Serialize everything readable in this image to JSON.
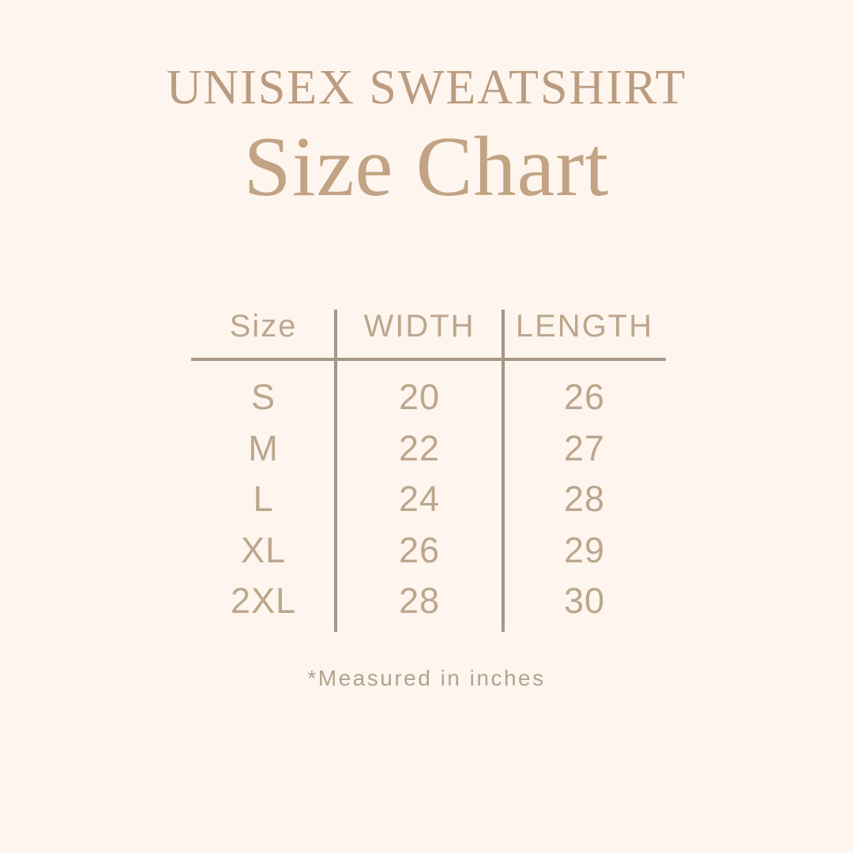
{
  "poster": {
    "subtitle": "UNISEX SWEATSHIRT",
    "title": "Size Chart",
    "footnote": "*Measured in inches"
  },
  "chart_data": {
    "type": "table",
    "title": "UNISEX SWEATSHIRT Size Chart",
    "columns": [
      "Size",
      "WIDTH",
      "LENGTH"
    ],
    "rows": [
      [
        "S",
        "20",
        "26"
      ],
      [
        "M",
        "22",
        "27"
      ],
      [
        "L",
        "24",
        "28"
      ],
      [
        "XL",
        "26",
        "29"
      ],
      [
        "2XL",
        "28",
        "30"
      ]
    ],
    "footnote": "*Measured in inches"
  },
  "colors": {
    "bg": "#fdf5ee",
    "title": "#bb9c80",
    "title2": "#c2a384",
    "text": "#bda68e",
    "rule": "#a69686",
    "muted": "#b2a28e"
  }
}
